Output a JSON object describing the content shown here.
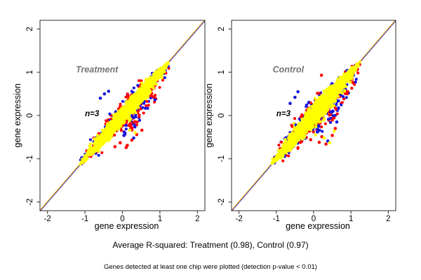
{
  "figure": {
    "background": "#ffffff",
    "caption_r_squared": "Average R-squared: Treatment (0.98), Control (0.97)",
    "caption_detection": "Genes detected at least one chip were plotted (detection p-value < 0.01)"
  },
  "chart_data": {
    "type": "scatter",
    "layout": "two-panel pairs plot of replicate chips",
    "xlabel": "gene expression",
    "ylabel": "gene expression",
    "xlim": [
      -2.2,
      2.2
    ],
    "ylim": [
      -2.2,
      2.2
    ],
    "xticks": [
      "-2",
      "-1",
      "0",
      "1",
      "2"
    ],
    "xtick_values": [
      -2,
      -1,
      0,
      1,
      2
    ],
    "yticks": [
      "-2",
      "-1",
      "0",
      "1",
      "2"
    ],
    "ytick_values": [
      -2,
      -1,
      0,
      1,
      2
    ],
    "grid": false,
    "identity_line": {
      "from": -2.2,
      "to": 2.2
    },
    "colors": {
      "red": "#fe0000",
      "blue": "#1515dd",
      "yellow": "#ffff00",
      "line_top": "#ffd800",
      "line_mid": "#e06a10",
      "line_bottom": "#5656c6",
      "frame": "#2e2e2e",
      "panel_title": "#757575",
      "text": "#000000"
    },
    "annotation_pos": {
      "title_x": -0.68,
      "title_y": 1.06,
      "n_x": -0.81,
      "n_y": 0.05
    },
    "panels": [
      {
        "title": "Treatment",
        "annotation": "n=3",
        "avg_r_squared": 0.98,
        "cloud": {
          "along_min": -1.15,
          "along_max": 1.27,
          "n_core": 2400,
          "n_fringe": 640,
          "sigma_core": 0.065,
          "sigma_fringe": 0.12,
          "lower_skirt_prob": 0.2,
          "seed": 7
        },
        "outliers": [
          [
            0.13,
            -0.69,
            "r"
          ],
          [
            0.25,
            -0.57,
            "r"
          ],
          [
            0.38,
            -0.44,
            "r"
          ],
          [
            0.1,
            -0.74,
            "r"
          ],
          [
            -0.06,
            -0.63,
            "r"
          ],
          [
            0.52,
            -0.34,
            "r"
          ],
          [
            -0.2,
            -0.72,
            "r"
          ],
          [
            -0.37,
            0.56,
            "b"
          ],
          [
            -0.59,
            0.4,
            "b"
          ],
          [
            -0.48,
            0.5,
            "b"
          ],
          [
            0.04,
            -0.46,
            "b"
          ],
          [
            0.3,
            -0.52,
            "b"
          ],
          [
            0.34,
            -0.4,
            "y"
          ],
          [
            0.2,
            -0.34,
            "y"
          ]
        ]
      },
      {
        "title": "Control",
        "annotation": "n=3",
        "avg_r_squared": 0.97,
        "cloud": {
          "along_min": -1.15,
          "along_max": 1.25,
          "n_core": 2400,
          "n_fringe": 680,
          "sigma_core": 0.075,
          "sigma_fringe": 0.13,
          "lower_skirt_prob": 0.22,
          "seed": 13
        },
        "outliers": [
          [
            0.15,
            -0.62,
            "r"
          ],
          [
            0.33,
            -0.66,
            "r"
          ],
          [
            0.5,
            -0.46,
            "r"
          ],
          [
            0.22,
            -0.49,
            "r"
          ],
          [
            -0.08,
            -0.56,
            "r"
          ],
          [
            0.21,
            0.93,
            "r"
          ],
          [
            0.58,
            -0.3,
            "r"
          ],
          [
            -0.5,
            0.42,
            "b"
          ],
          [
            -0.63,
            0.28,
            "b"
          ],
          [
            0.1,
            -0.38,
            "b"
          ],
          [
            0.38,
            -0.59,
            "b"
          ],
          [
            -0.42,
            0.55,
            "b"
          ],
          [
            0.62,
            -0.15,
            "b"
          ],
          [
            0.28,
            -0.52,
            "y"
          ],
          [
            0.43,
            -0.63,
            "y"
          ],
          [
            0.05,
            -0.45,
            "y"
          ],
          [
            0.55,
            -0.36,
            "y"
          ]
        ]
      }
    ]
  }
}
